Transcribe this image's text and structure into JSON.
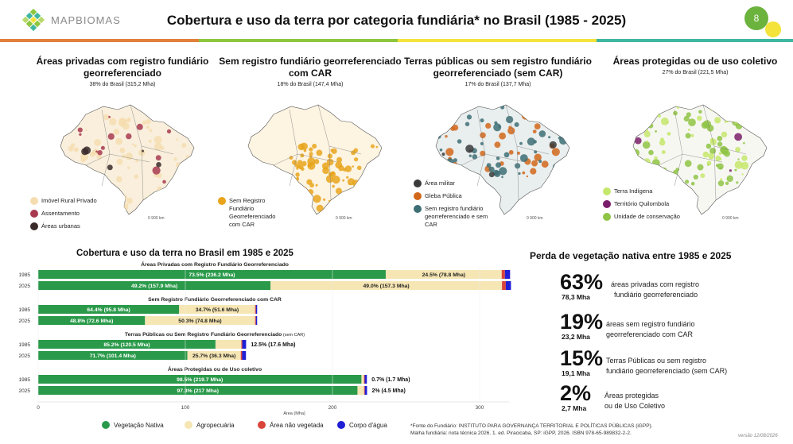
{
  "header": {
    "logo_text": "MAPBIOMAS",
    "title": "Cobertura e uso da terra por categoria fundiária* no Brasil (1985 - 2025)",
    "page_number": "8",
    "strip_colors": [
      "#e1813a",
      "#8dc63f",
      "#f3e33b",
      "#3fb6a0"
    ]
  },
  "maps": [
    {
      "title": "Áreas privadas com registro fundiário georreferenciado",
      "subtitle": "38% do Brasil (315,2 Mha)",
      "legend": [
        {
          "label": "Imóvel Rural Privado",
          "color": "#f6ddb0"
        },
        {
          "label": "Assentamento",
          "color": "#a83a50"
        },
        {
          "label": "Áreas urbanas",
          "color": "#3a2a2a"
        }
      ],
      "scale": "900 km"
    },
    {
      "title": "Sem registro fundiário georreferenciado com CAR",
      "subtitle": "18% do Brasil (147,4 Mha)",
      "legend": [
        {
          "label": "Sem Registro Fundiário Georreferenciado com CAR",
          "color": "#e8a41c"
        }
      ],
      "scale": "900 km"
    },
    {
      "title": "Terras públicas ou sem registro fundiário georreferenciado (sem CAR)",
      "subtitle": "17% do Brasil (137,7 Mha)",
      "legend": [
        {
          "label": "Área militar",
          "color": "#3a3a3a"
        },
        {
          "label": "Gleba Pública",
          "color": "#d2671b"
        },
        {
          "label": "Sem registro fundiário georreferenciado e sem CAR",
          "color": "#3d6f75"
        }
      ],
      "scale": "900 km"
    },
    {
      "title": "Áreas protegidas ou de uso coletivo",
      "subtitle": "27% do Brasil (221,5 Mha)",
      "legend": [
        {
          "label": "Terra Indígena",
          "color": "#c5e86c"
        },
        {
          "label": "Território Quilombola",
          "color": "#7a1e6a"
        },
        {
          "label": "Unidade de conservação",
          "color": "#8fc445"
        }
      ],
      "scale": "900 km"
    }
  ],
  "chart_data": {
    "type": "bar",
    "title": "Cobertura e uso da terra no Brasil em 1985 e 2025",
    "orientation": "horizontal-stacked",
    "xlabel": "Área (Mha)",
    "ylabel": "",
    "xlim": [
      0,
      320
    ],
    "x_ticks": [
      0,
      100,
      200,
      300
    ],
    "legend_position": "bottom",
    "series_names": [
      "Vegetação Nativa",
      "Agropecuária",
      "Área não vegetada",
      "Corpo d'água"
    ],
    "series_colors": [
      "#2a9a4a",
      "#f6e6b4",
      "#d9453b",
      "#1f1fd6"
    ],
    "groups": [
      {
        "title": "Áreas Privadas com Registro Fundiário Georreferenciado",
        "title_suffix": "",
        "rows": [
          {
            "year": "1985",
            "values": [
              236.2,
              78.8,
              2.2,
              3.5
            ],
            "labels": [
              "73.5% (236.2 Mha)",
              "24.5% (78.8 Mha)"
            ]
          },
          {
            "year": "2025",
            "values": [
              157.9,
              157.3,
              2.6,
              3.5
            ],
            "labels": [
              "49.2% (157.9 Mha)",
              "49.0% (157.3 Mha)"
            ]
          }
        ]
      },
      {
        "title": "Sem Registro Fundiário Georreferenciado com CAR",
        "title_suffix": "",
        "rows": [
          {
            "year": "1985",
            "values": [
              95.8,
              51.6,
              0.6,
              0.8
            ],
            "labels": [
              "64.4% (95.8 Mha)",
              "34.7% (51.6 Mha)"
            ]
          },
          {
            "year": "2025",
            "values": [
              72.6,
              74.8,
              0.6,
              0.8
            ],
            "labels": [
              "48.8% (72.6 Mha)",
              "50.3% (74.8 Mha)"
            ]
          }
        ]
      },
      {
        "title": "Terras Públicas ou Sem Registro Fundiário Georreferenciado",
        "title_suffix": "(sem CAR)",
        "rows": [
          {
            "year": "1985",
            "values": [
              120.5,
              17.6,
              0.6,
              2.6
            ],
            "labels": [
              "85.2% (120.5 Mha)"
            ],
            "outside_label": "12.5% (17.6 Mha)"
          },
          {
            "year": "2025",
            "values": [
              101.4,
              36.3,
              0.9,
              2.6
            ],
            "labels": [
              "71.7% (101.4 Mha)",
              "25.7% (36.3 Mha)"
            ]
          }
        ]
      },
      {
        "title": "Áreas Protegidas ou de Uso coletivo",
        "title_suffix": "",
        "rows": [
          {
            "year": "1985",
            "values": [
              219.7,
              1.7,
              0.5,
              1.5
            ],
            "labels": [
              "98.5% (219.7 Mha)"
            ],
            "outside_label": "0.7% (1.7 Mha)"
          },
          {
            "year": "2025",
            "values": [
              217.0,
              4.5,
              0.5,
              1.5
            ],
            "labels": [
              "97.3% (217 Mha)"
            ],
            "outside_label": "2% (4.5 Mha)"
          }
        ]
      }
    ]
  },
  "vegetation_loss": {
    "title": "Perda de vegetação nativa entre 1985 e 2025",
    "items": [
      {
        "percent": "63%",
        "mha": "78,3 Mha",
        "desc_1": "áreas privadas com registro",
        "desc_2": "fundiário georreferenciado"
      },
      {
        "percent": "19%",
        "mha": "23,2 Mha",
        "desc_1": "áreas sem registro fundiário",
        "desc_2": "georreferenciado com CAR"
      },
      {
        "percent": "15%",
        "mha": "19,1 Mha",
        "desc_1": "Terras Públicas ou sem registro",
        "desc_2": "fundiário georreferenciado (sem CAR)"
      },
      {
        "percent": "2%",
        "mha": "2,7 Mha",
        "desc_1": "Áreas protegidas",
        "desc_2": "ou de Uso Coletivo"
      }
    ]
  },
  "footnote_1": "*Fonte do Fundiário: INSTITUTO PARA GOVERNANÇA TERRITORIAL E POLÍTICAS PÚBLICAS (iGPP).",
  "footnote_2": "Malha fundiária: nota técnica 2026. 1. ed. Piracicaba, SP: iGPP, 2026. ISBN 978-65-989832-2-2.",
  "version": "versão 12/08/2026"
}
